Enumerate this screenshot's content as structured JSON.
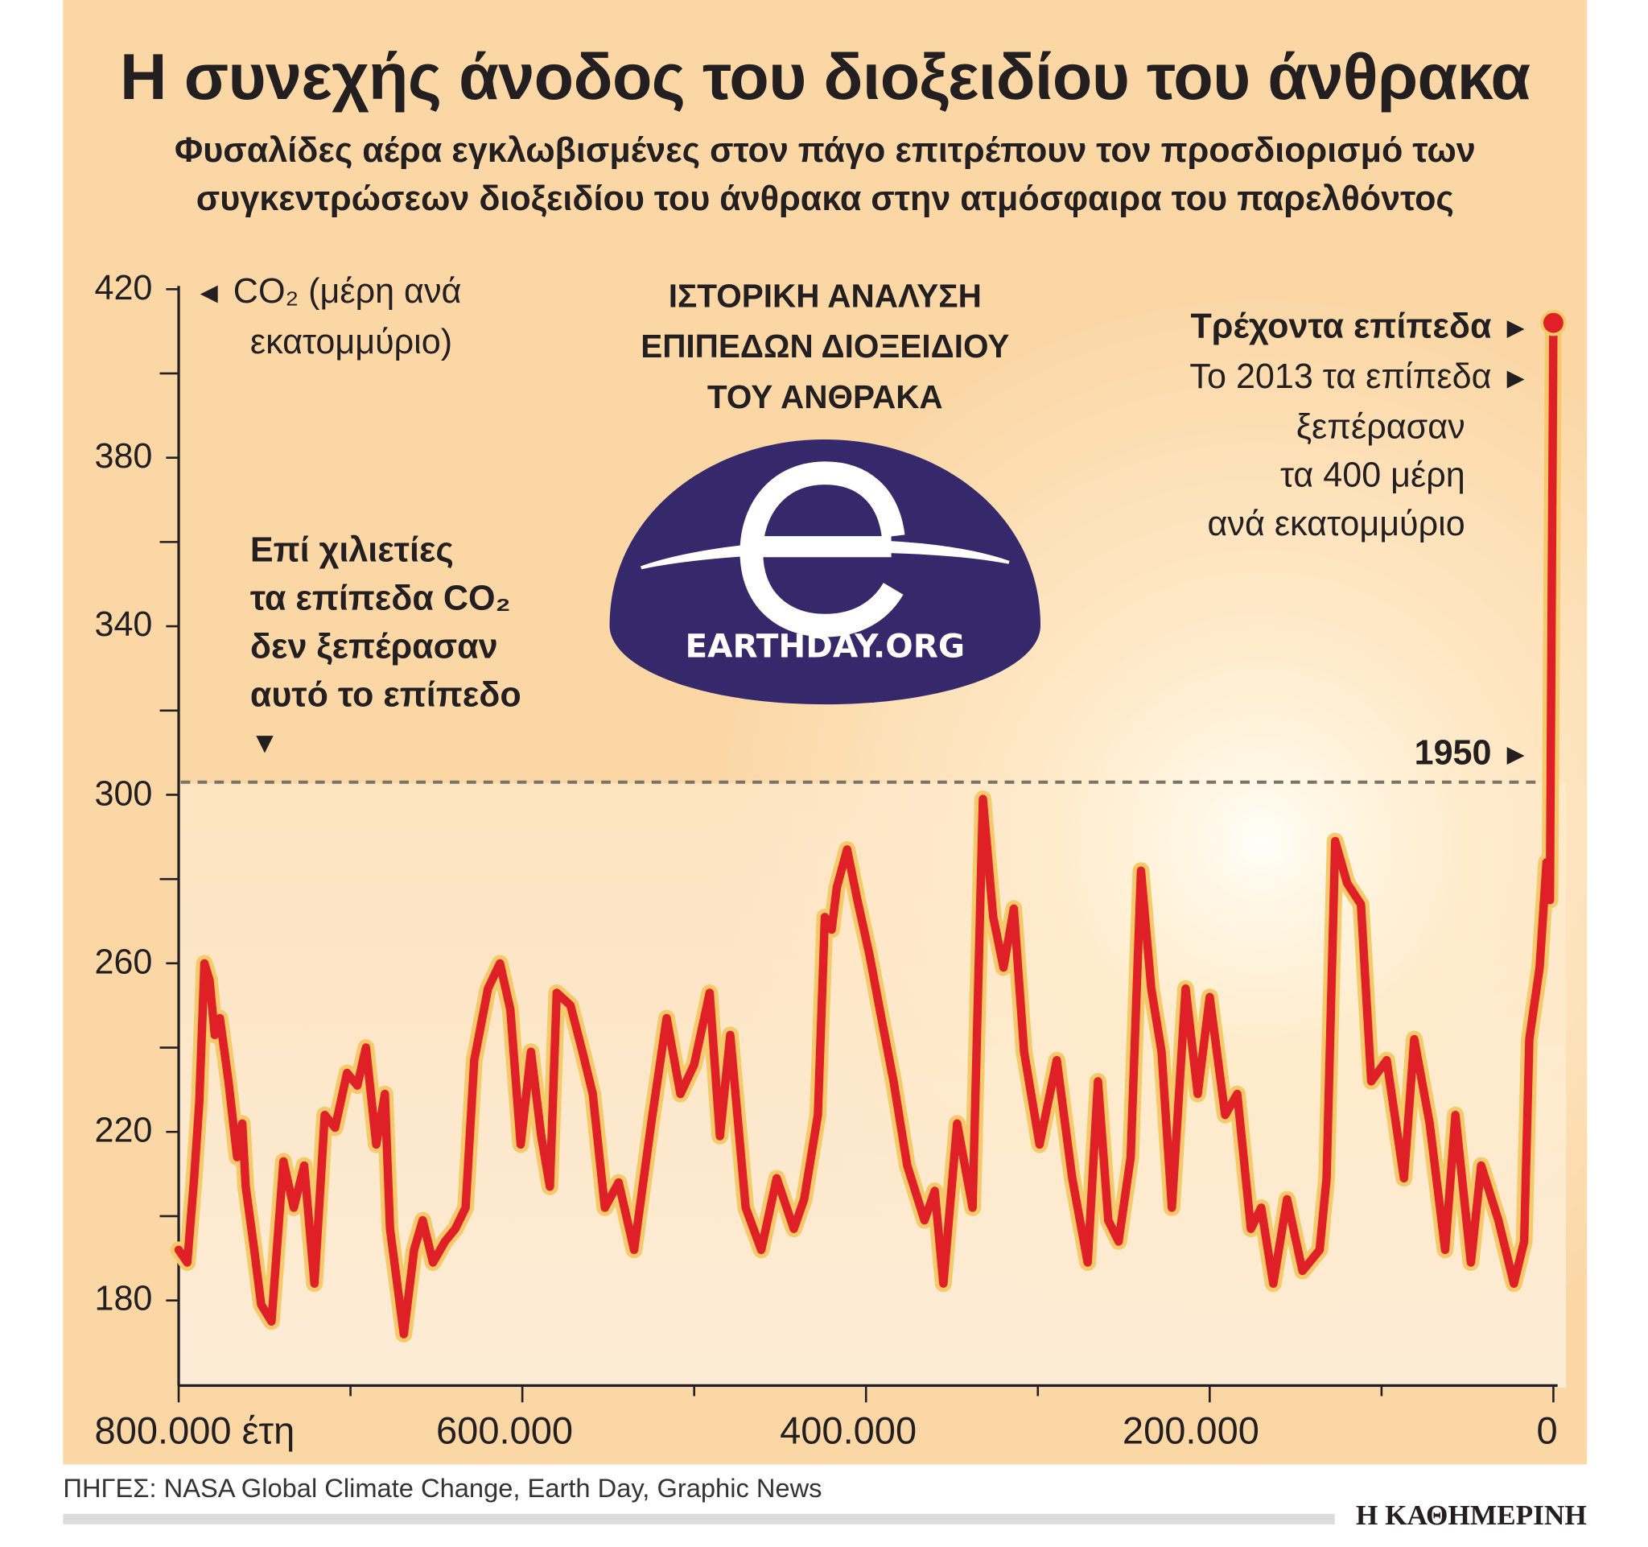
{
  "header": {
    "title": "Η συνεχής άνοδος του διοξειδίου του άνθρακα",
    "subtitle_line1": "Φυσαλίδες αέρα εγκλωβισμένες στον πάγο επιτρέπουν τον προσδιορισμό των",
    "subtitle_line2": "συγκεντρώσεων διοξειδίου του άνθρακα στην ατμόσφαιρα του παρελθόντος"
  },
  "chart_data": {
    "type": "line",
    "title": "Η συνεχής άνοδος του διοξειδίου του άνθρακα",
    "ylabel_line1": "CO₂ (μέρη ανά",
    "ylabel_line2": "εκατομμύριο)",
    "xlabel": "έτη",
    "ylim": [
      160,
      420
    ],
    "xlim": [
      800000,
      0
    ],
    "y_ticks": [
      420,
      380,
      340,
      300,
      260,
      220,
      180
    ],
    "x_ticks": [
      "800.000 έτη",
      "600.000",
      "400.000",
      "200.000",
      "0"
    ],
    "x_tick_values": [
      800000,
      600000,
      400000,
      200000,
      0
    ],
    "grid": false,
    "reference_line": {
      "value": 303,
      "label": "1950"
    },
    "series": [
      {
        "color": "#e02027",
        "glow": "#f7c96a",
        "x": [
          800000,
          795000,
          791000,
          788000,
          785000,
          782000,
          779000,
          776000,
          771000,
          766000,
          763000,
          761000,
          756000,
          752000,
          746000,
          739000,
          733000,
          727000,
          721000,
          715000,
          709000,
          702000,
          696000,
          691000,
          685000,
          680000,
          677000,
          669000,
          663000,
          658000,
          652000,
          645000,
          639000,
          633000,
          628000,
          620000,
          613000,
          607000,
          601000,
          595000,
          589000,
          584000,
          580000,
          572000,
          565000,
          559000,
          552000,
          544000,
          535000,
          525000,
          516000,
          508000,
          500000,
          491000,
          485000,
          479000,
          470000,
          461000,
          452000,
          442000,
          436000,
          428000,
          424000,
          420000,
          417000,
          411000,
          405000,
          398000,
          392000,
          384000,
          376000,
          366000,
          360000,
          355000,
          347000,
          338000,
          332000,
          326000,
          320000,
          314000,
          308000,
          299000,
          289000,
          280000,
          271000,
          265000,
          259000,
          253000,
          246000,
          240000,
          234000,
          228000,
          222000,
          214000,
          207000,
          200000,
          191000,
          184000,
          176000,
          170000,
          163000,
          155000,
          146000,
          136000,
          132000,
          127000,
          120000,
          112000,
          106000,
          97000,
          87000,
          81000,
          72000,
          63000,
          57000,
          48000,
          42000,
          32000,
          23000,
          17000,
          14000,
          8000,
          4000,
          2000,
          0
        ],
        "y": [
          192,
          189,
          209,
          227,
          260,
          256,
          243,
          247,
          232,
          214,
          222,
          207,
          192,
          179,
          175,
          213,
          202,
          212,
          184,
          224,
          221,
          234,
          231,
          240,
          217,
          229,
          197,
          172,
          192,
          199,
          189,
          194,
          197,
          202,
          237,
          254,
          260,
          249,
          217,
          239,
          219,
          207,
          253,
          250,
          239,
          229,
          202,
          208,
          192,
          222,
          247,
          229,
          236,
          253,
          219,
          243,
          202,
          192,
          209,
          197,
          204,
          224,
          271,
          268,
          278,
          287,
          275,
          262,
          249,
          232,
          212,
          199,
          206,
          184,
          222,
          202,
          299,
          271,
          259,
          273,
          239,
          217,
          237,
          209,
          189,
          232,
          199,
          194,
          214,
          282,
          254,
          239,
          202,
          254,
          229,
          252,
          224,
          229,
          197,
          202,
          184,
          204,
          187,
          192,
          209,
          289,
          279,
          274,
          232,
          237,
          209,
          242,
          222,
          192,
          224,
          189,
          212,
          199,
          184,
          194,
          242,
          259,
          284,
          275,
          412
        ]
      }
    ]
  },
  "annotations": {
    "current_bold": "Τρέχοντα επίπεδα",
    "current_1": "Το 2013 τα επίπεδα",
    "current_2": "ξεπέρασαν",
    "current_3": "τα 400 μέρη",
    "current_4": "ανά εκατομμύριο",
    "millennia_1": "Επί χιλιετίες",
    "millennia_2": "τα επίπεδα CO₂",
    "millennia_3": "δεν ξεπέρασαν",
    "millennia_4": "αυτό το επίπεδο"
  },
  "logo": {
    "heading_1": "ΙΣΤΟΡΙΚΗ ΑΝΑΛΥΣΗ",
    "heading_2": "ΕΠΙΠΕΔΩΝ ΔΙΟΞΕΙΔΙΟΥ",
    "heading_3": "ΤΟΥ ΑΝΘΡΑΚΑ",
    "text": "EARTHDAY.ORG",
    "color": "#35296b"
  },
  "footer": {
    "sources": "ΠΗΓΕΣ: NASA Global Climate Change, Earth Day, Graphic News",
    "brand": "Η ΚΑΘΗΜΕΡΙΝΗ"
  }
}
